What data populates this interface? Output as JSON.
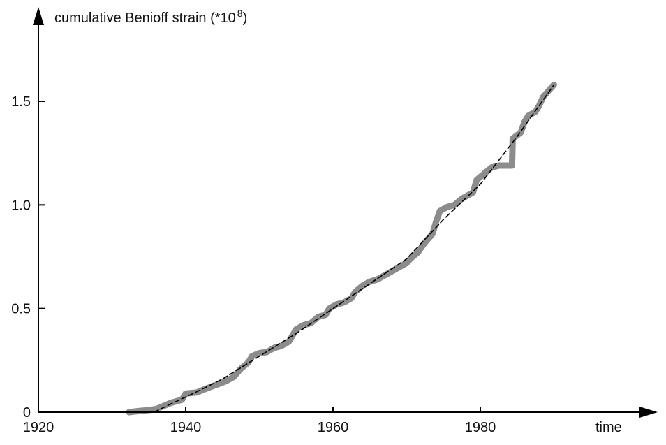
{
  "chart_data": {
    "type": "line",
    "title": "",
    "xlabel": "time",
    "ylabel": "cumulative Benioff strain (*10",
    "ylabel_exponent": "8",
    "ylabel_close": ")",
    "xlim": [
      1920,
      1994
    ],
    "ylim": [
      0,
      1.85
    ],
    "x_ticks": [
      1920,
      1940,
      1960,
      1980
    ],
    "y_ticks": [
      0,
      0.5,
      1.0,
      1.5
    ],
    "y_tick_labels": [
      "0",
      "0.5",
      "1.0",
      "1.5"
    ],
    "grid": false,
    "legend": "none",
    "series": [
      {
        "style": "thick-gray-data",
        "color": "#8c8c8c",
        "points": [
          [
            1932.3,
            0.0
          ],
          [
            1933.5,
            0.005
          ],
          [
            1935.0,
            0.01
          ],
          [
            1936.0,
            0.015
          ],
          [
            1937.0,
            0.03
          ],
          [
            1938.0,
            0.045
          ],
          [
            1939.5,
            0.06
          ],
          [
            1940.0,
            0.09
          ],
          [
            1941.5,
            0.095
          ],
          [
            1942.5,
            0.11
          ],
          [
            1944.0,
            0.13
          ],
          [
            1945.5,
            0.15
          ],
          [
            1946.5,
            0.17
          ],
          [
            1947.5,
            0.21
          ],
          [
            1948.5,
            0.24
          ],
          [
            1949.0,
            0.27
          ],
          [
            1950.0,
            0.285
          ],
          [
            1951.0,
            0.29
          ],
          [
            1952.0,
            0.31
          ],
          [
            1953.0,
            0.32
          ],
          [
            1954.0,
            0.34
          ],
          [
            1955.0,
            0.4
          ],
          [
            1956.0,
            0.42
          ],
          [
            1957.0,
            0.43
          ],
          [
            1958.0,
            0.46
          ],
          [
            1959.0,
            0.47
          ],
          [
            1959.5,
            0.5
          ],
          [
            1960.5,
            0.52
          ],
          [
            1961.5,
            0.53
          ],
          [
            1962.5,
            0.55
          ],
          [
            1963.0,
            0.58
          ],
          [
            1964.0,
            0.61
          ],
          [
            1965.0,
            0.63
          ],
          [
            1966.0,
            0.64
          ],
          [
            1967.0,
            0.66
          ],
          [
            1968.0,
            0.68
          ],
          [
            1969.0,
            0.7
          ],
          [
            1970.0,
            0.72
          ],
          [
            1970.5,
            0.74
          ],
          [
            1971.5,
            0.77
          ],
          [
            1972.5,
            0.82
          ],
          [
            1973.5,
            0.86
          ],
          [
            1974.0,
            0.92
          ],
          [
            1974.5,
            0.97
          ],
          [
            1975.5,
            0.99
          ],
          [
            1976.5,
            1.0
          ],
          [
            1977.5,
            1.03
          ],
          [
            1978.5,
            1.05
          ],
          [
            1979.0,
            1.06
          ],
          [
            1979.5,
            1.12
          ],
          [
            1980.5,
            1.15
          ],
          [
            1981.5,
            1.18
          ],
          [
            1982.5,
            1.19
          ],
          [
            1983.5,
            1.19
          ],
          [
            1984.3,
            1.19
          ],
          [
            1984.4,
            1.32
          ],
          [
            1985.5,
            1.35
          ],
          [
            1986.0,
            1.4
          ],
          [
            1986.5,
            1.43
          ],
          [
            1987.5,
            1.45
          ],
          [
            1988.0,
            1.48
          ],
          [
            1988.5,
            1.52
          ],
          [
            1989.5,
            1.56
          ],
          [
            1990.0,
            1.58
          ]
        ]
      },
      {
        "style": "dashed-fit",
        "color": "#000000",
        "points": [
          [
            1935.7,
            0.0
          ],
          [
            1938.0,
            0.04
          ],
          [
            1941.0,
            0.09
          ],
          [
            1945.0,
            0.16
          ],
          [
            1950.0,
            0.27
          ],
          [
            1955.0,
            0.38
          ],
          [
            1960.0,
            0.5
          ],
          [
            1965.0,
            0.62
          ],
          [
            1970.0,
            0.74
          ],
          [
            1975.0,
            0.93
          ],
          [
            1980.0,
            1.1
          ],
          [
            1985.0,
            1.33
          ],
          [
            1990.0,
            1.58
          ]
        ]
      }
    ]
  }
}
